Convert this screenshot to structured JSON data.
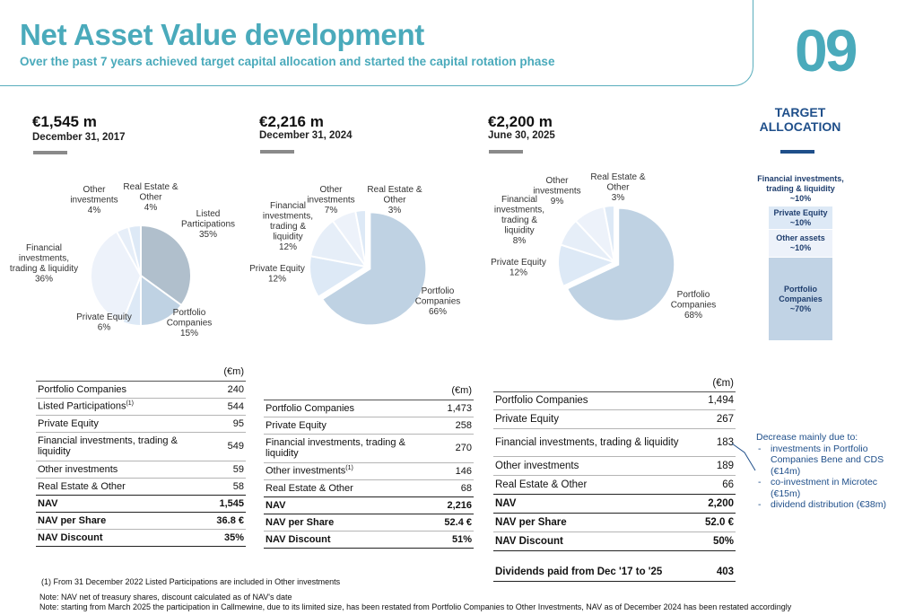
{
  "header": {
    "title": "Net Asset Value development",
    "subtitle": "Over the past 7 years achieved target capital allocation and started the capital rotation phase",
    "page_number": "09"
  },
  "colors": {
    "accent": "#4aaabb",
    "navy": "#1f4f8a",
    "slice_main": "#bfd2e3",
    "slice_gray": "#b0bfcc",
    "slice_light": "#dde9f6",
    "slice_lighter": "#e6eef8",
    "slice_lightest": "#edf2fa"
  },
  "panels": [
    {
      "amount": "€1,545 m",
      "date": "December 31, 2017"
    },
    {
      "amount": "€2,216 m",
      "date": "December 31, 2024"
    },
    {
      "amount": "€2,200 m",
      "date": "June 30, 2025"
    }
  ],
  "chart_data": [
    {
      "type": "pie",
      "title": "€1,545 m December 31, 2017",
      "slices": [
        {
          "name": "Listed Participations",
          "value": 35,
          "label": "35%"
        },
        {
          "name": "Portfolio Companies",
          "value": 15,
          "label": "15%"
        },
        {
          "name": "Private Equity",
          "value": 6,
          "label": "6%"
        },
        {
          "name": "Financial investments, trading & liquidity",
          "value": 36,
          "label": "36%"
        },
        {
          "name": "Other investments",
          "value": 4,
          "label": "4%"
        },
        {
          "name": "Real Estate & Other",
          "value": 4,
          "label": "4%"
        }
      ],
      "label_lines": [
        [
          "Listed",
          "Participations",
          "35%"
        ],
        [
          "Portfolio",
          "Companies",
          "15%"
        ],
        [
          "Private Equity",
          "6%"
        ],
        [
          "Financial",
          "investments,",
          "trading & liquidity",
          "36%"
        ],
        [
          "Other",
          "investments",
          "4%"
        ],
        [
          "Real Estate &",
          "Other",
          "4%"
        ]
      ]
    },
    {
      "type": "pie",
      "title": "€2,216 m December 31, 2024",
      "slices": [
        {
          "name": "Portfolio Companies",
          "value": 66,
          "label": "66%"
        },
        {
          "name": "Private Equity",
          "value": 12,
          "label": "12%"
        },
        {
          "name": "Financial investments, trading & liquidity",
          "value": 12,
          "label": "12%"
        },
        {
          "name": "Other investments",
          "value": 7,
          "label": "7%"
        },
        {
          "name": "Real Estate & Other",
          "value": 3,
          "label": "3%"
        }
      ],
      "label_lines": [
        [
          "Portfolio",
          "Companies",
          "66%"
        ],
        [
          "Private Equity",
          "12%"
        ],
        [
          "Financial",
          "investments,",
          "trading &",
          "liquidity",
          "12%"
        ],
        [
          "Other",
          "investments",
          "7%"
        ],
        [
          "Real Estate &",
          "Other",
          "3%"
        ]
      ]
    },
    {
      "type": "pie",
      "title": "€2,200 m June 30, 2025",
      "slices": [
        {
          "name": "Portfolio Companies",
          "value": 68,
          "label": "68%"
        },
        {
          "name": "Private Equity",
          "value": 12,
          "label": "12%"
        },
        {
          "name": "Financial investments, trading & liquidity",
          "value": 8,
          "label": "8%"
        },
        {
          "name": "Other investments",
          "value": 9,
          "label": "9%"
        },
        {
          "name": "Real Estate & Other",
          "value": 3,
          "label": "3%"
        }
      ],
      "label_lines": [
        [
          "Portfolio",
          "Companies",
          "68%"
        ],
        [
          "Private Equity",
          "12%"
        ],
        [
          "Financial",
          "investments,",
          "trading &",
          "liquidity",
          "8%"
        ],
        [
          "Other",
          "investments",
          "9%"
        ],
        [
          "Real Estate &",
          "Other",
          "3%"
        ]
      ]
    }
  ],
  "target_allocation": {
    "title": "TARGET ALLOCATION",
    "items": [
      {
        "label": "Financial investments, trading & liquidity",
        "pct": "~10%"
      },
      {
        "label": "Private Equity",
        "pct": "~10%"
      },
      {
        "label": "Other assets",
        "pct": "~10%"
      },
      {
        "label": "Portfolio Companies",
        "pct": "~70%"
      }
    ]
  },
  "tables": [
    {
      "unit": "(€m)",
      "rows": [
        {
          "label": "Portfolio Companies",
          "value": "240"
        },
        {
          "label": "Listed Participations",
          "sup": "(1)",
          "value": "544"
        },
        {
          "label": "Private Equity",
          "value": "95"
        },
        {
          "label": "Financial investments, trading & liquidity",
          "value": "549"
        },
        {
          "label": "Other investments",
          "value": "59"
        },
        {
          "label": "Real Estate & Other",
          "value": "58"
        },
        {
          "label": "NAV",
          "value": "1,545",
          "bold": true
        },
        {
          "label": "NAV per Share",
          "value": "36.8 €",
          "bold": true
        },
        {
          "label": "NAV Discount",
          "value": "35%",
          "bold": true
        }
      ]
    },
    {
      "unit": "(€m)",
      "rows": [
        {
          "label": "Portfolio Companies",
          "value": "1,473"
        },
        {
          "label": "Private Equity",
          "value": "258"
        },
        {
          "label": "Financial investments, trading & liquidity",
          "value": "270"
        },
        {
          "label": "Other investments",
          "sup": "(1)",
          "value": "146"
        },
        {
          "label": "Real Estate & Other",
          "value": "68"
        },
        {
          "label": "NAV",
          "value": "2,216",
          "bold": true
        },
        {
          "label": "NAV per Share",
          "value": "52.4 €",
          "bold": true
        },
        {
          "label": "NAV Discount",
          "value": "51%",
          "bold": true
        }
      ]
    },
    {
      "unit": "(€m)",
      "rows": [
        {
          "label": "Portfolio Companies",
          "value": "1,494"
        },
        {
          "label": "Private Equity",
          "value": "267"
        },
        {
          "label": "Financial investments, trading & liquidity",
          "value": "183"
        },
        {
          "label": "Other investments",
          "value": "189"
        },
        {
          "label": "Real Estate & Other",
          "value": "66"
        },
        {
          "label": "NAV",
          "value": "2,200",
          "bold": true
        },
        {
          "label": "NAV per Share",
          "value": "52.0 €",
          "bold": true
        },
        {
          "label": "NAV Discount",
          "value": "50%",
          "bold": true
        }
      ],
      "dividends": {
        "label": "Dividends paid from Dec '17 to '25",
        "value": "403"
      }
    }
  ],
  "decrease_note": {
    "heading": "Decrease mainly due to:",
    "items": [
      "investments in Portfolio Companies Bene and CDS (€14m)",
      "co-investment in Microtec (€15m)",
      "dividend distribution (€38m)"
    ]
  },
  "footnotes": {
    "f1": "(1)   From 31 December 2022 Listed Participations are included in Other investments",
    "note1": "Note: NAV net of treasury shares, discount calculated as of NAV's date",
    "note2": "Note: starting from March 2025 the participation in Callmewine, due to its limited size, has been restated from Portfolio Companies to Other Investments, NAV as of December 2024 has been restated accordingly"
  }
}
